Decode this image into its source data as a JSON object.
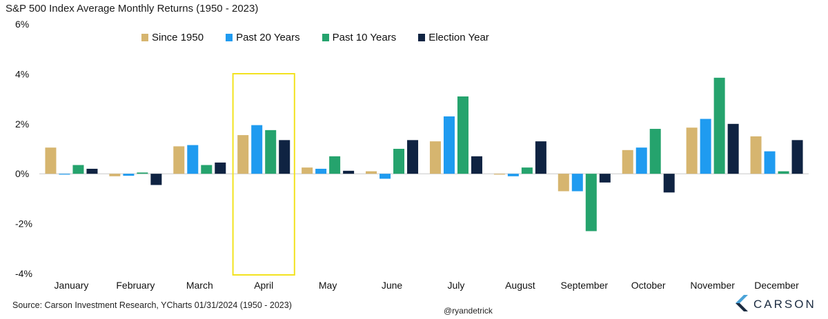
{
  "title": "S&P 500 Index Average Monthly Returns (1950 - 2023)",
  "source": "Source: Carson Investment Research, YCharts 01/31/2024 (1950 - 2023)",
  "handle": "@ryandetrick",
  "logo_text": "CARSON",
  "colors": {
    "Since 1950": "#d6b56f",
    "Past 20 Years": "#1f9bf0",
    "Past 10 Years": "#25a36d",
    "Election Year": "#0f2342",
    "highlight": "#f2e21f"
  },
  "chart_data": {
    "type": "bar",
    "title": "S&P 500 Index Average Monthly Returns (1950 - 2023)",
    "ylim": [
      -4,
      6
    ],
    "yticks": [
      "6%",
      "4%",
      "2%",
      "0%",
      "-2%",
      "-4%"
    ],
    "ytick_values": [
      6,
      4,
      2,
      0,
      -2,
      -4
    ],
    "legend_position": "top",
    "highlight_category": "April",
    "categories": [
      "January",
      "February",
      "March",
      "April",
      "May",
      "June",
      "July",
      "August",
      "September",
      "October",
      "November",
      "December"
    ],
    "series": [
      {
        "name": "Since 1950",
        "values": [
          1.05,
          -0.1,
          1.1,
          1.55,
          0.25,
          0.1,
          1.3,
          0.0,
          -0.7,
          0.95,
          1.85,
          1.5
        ]
      },
      {
        "name": "Past 20 Years",
        "values": [
          -0.02,
          -0.08,
          1.15,
          1.95,
          0.2,
          -0.2,
          2.3,
          -0.1,
          -0.7,
          1.05,
          2.2,
          0.9
        ]
      },
      {
        "name": "Past 10 Years",
        "values": [
          0.35,
          0.05,
          0.35,
          1.75,
          0.7,
          1.0,
          3.1,
          0.25,
          -2.3,
          1.8,
          3.85,
          0.1
        ]
      },
      {
        "name": "Election Year",
        "values": [
          0.2,
          -0.45,
          0.45,
          1.35,
          0.12,
          1.35,
          0.7,
          1.3,
          -0.35,
          -0.75,
          2.0,
          1.35
        ]
      }
    ]
  }
}
